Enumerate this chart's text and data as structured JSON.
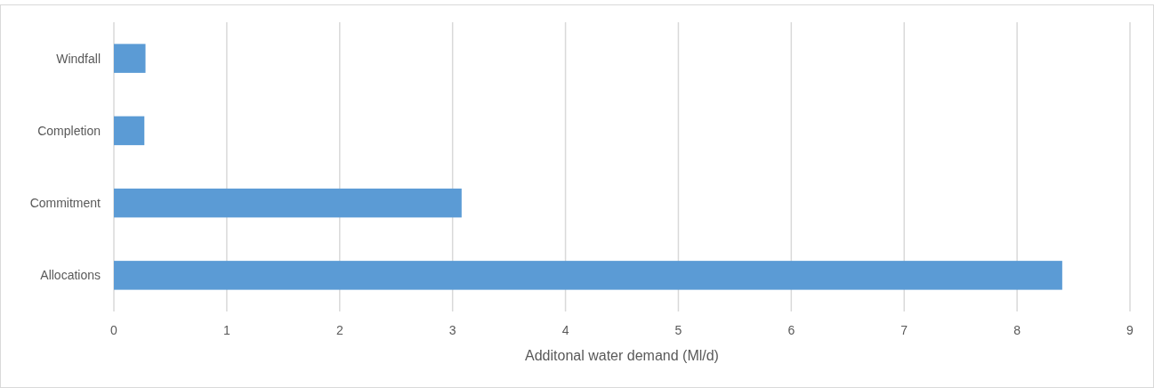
{
  "chart_data": {
    "type": "bar",
    "orientation": "horizontal",
    "xlabel": "Additonal water demand (Ml/d)",
    "categories": [
      "Windfall",
      "Completion",
      "Commitment",
      "Allocations"
    ],
    "values": [
      0.28,
      0.27,
      3.08,
      8.4
    ],
    "color": "#5b9bd5",
    "xlim": [
      0,
      9
    ],
    "xticks": [
      0,
      1,
      2,
      3,
      4,
      5,
      6,
      7,
      8,
      9
    ],
    "grid": "x"
  }
}
